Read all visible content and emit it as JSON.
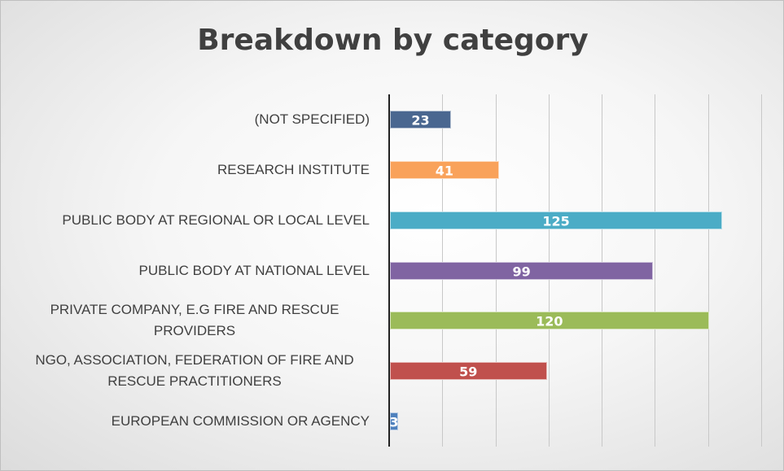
{
  "chart_data": {
    "type": "bar",
    "orientation": "horizontal",
    "title": "Breakdown by category",
    "categories": [
      "(NOT SPECIFIED)",
      "RESEARCH INSTITUTE",
      "PUBLIC BODY AT REGIONAL OR LOCAL LEVEL",
      "PUBLIC BODY AT NATIONAL LEVEL",
      "PRIVATE COMPANY, E.G FIRE AND RESCUE PROVIDERS",
      "NGO, ASSOCIATION, FEDERATION OF FIRE AND RESCUE PRACTITIONERS",
      "EUROPEAN COMMISSION OR AGENCY"
    ],
    "values": [
      23,
      41,
      125,
      99,
      120,
      59,
      3
    ],
    "colors": [
      "#4a6790",
      "#f9a25a",
      "#4bacc6",
      "#8064a2",
      "#9bbb59",
      "#c0504d",
      "#4f81bd"
    ],
    "xlim": [
      0,
      140
    ],
    "xticks": [
      0,
      20,
      40,
      60,
      80,
      100,
      120,
      140
    ],
    "grid": true
  }
}
